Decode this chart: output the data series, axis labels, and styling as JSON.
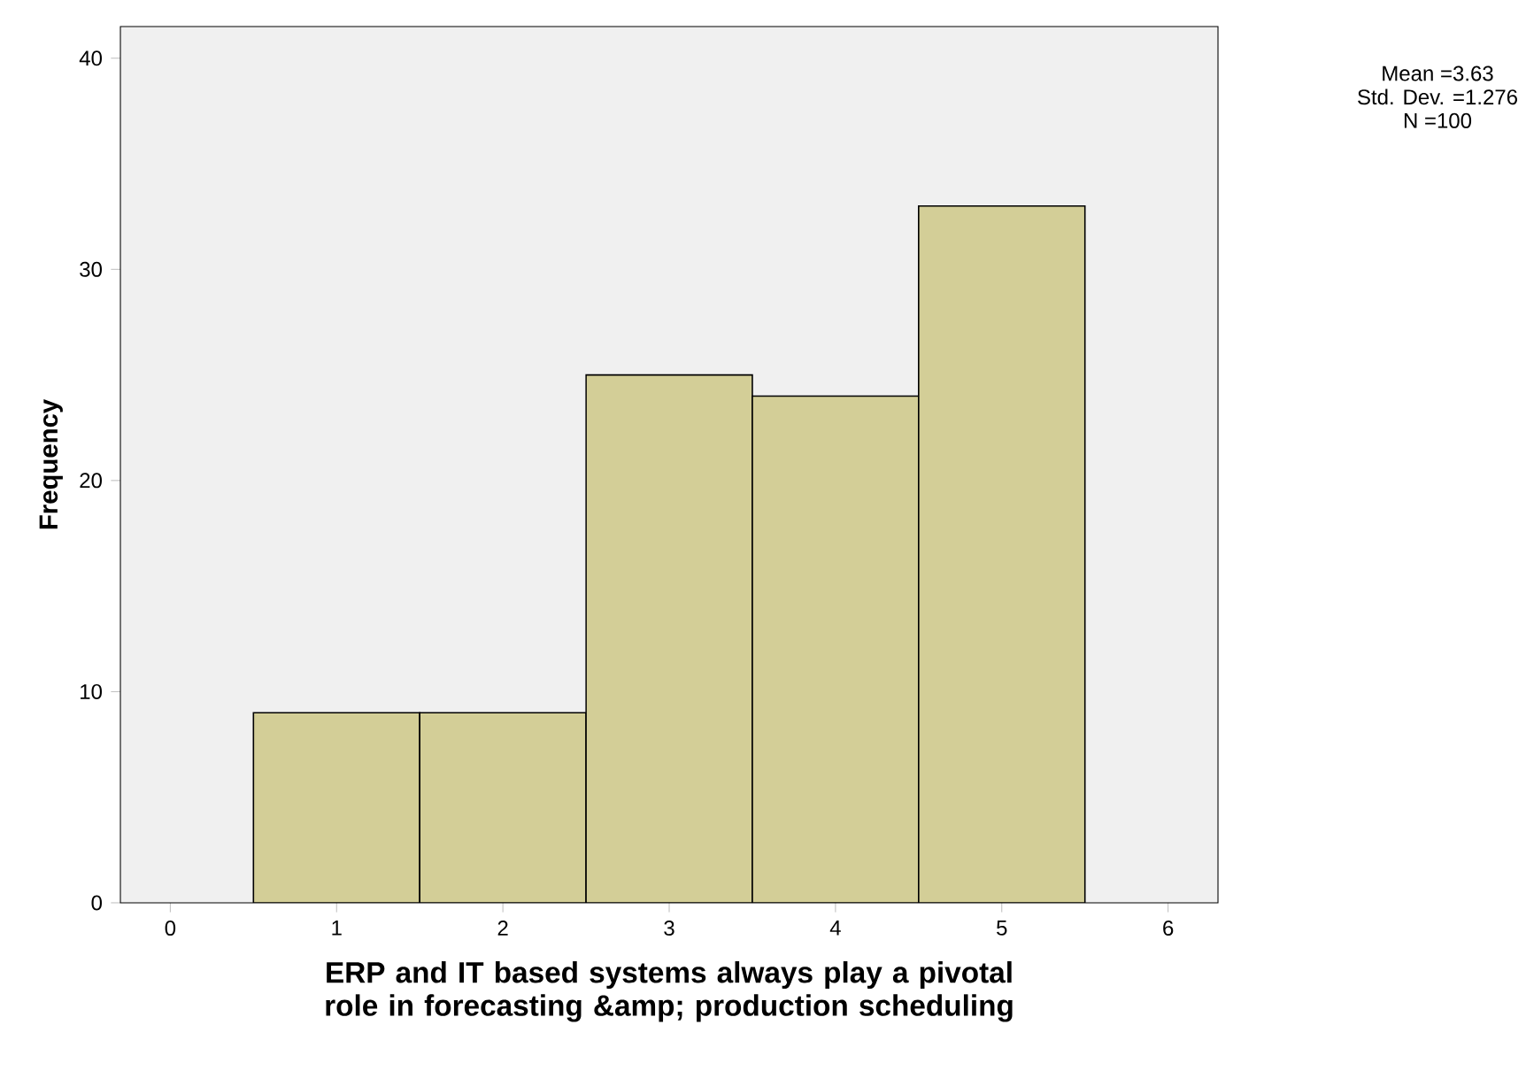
{
  "chart_data": {
    "type": "histogram",
    "xlabel": "ERP and IT based systems always play a pivotal role in forecasting &amp; production scheduling",
    "ylabel": "Frequency",
    "bins": [
      0.5,
      1.5,
      2.5,
      3.5,
      4.5,
      5.5
    ],
    "values": [
      9,
      9,
      25,
      24,
      33
    ],
    "color": "#d3ce97",
    "xlim": [
      -0.3,
      6.3
    ],
    "xticks": [
      0,
      1,
      2,
      3,
      4,
      5,
      6
    ],
    "ylim": [
      0,
      41.5
    ],
    "yticks": [
      0,
      10,
      20,
      30,
      40
    ],
    "grid": false,
    "annotations": [
      "Mean =3.63",
      "Std. Dev. =1.276",
      "N =100"
    ]
  }
}
